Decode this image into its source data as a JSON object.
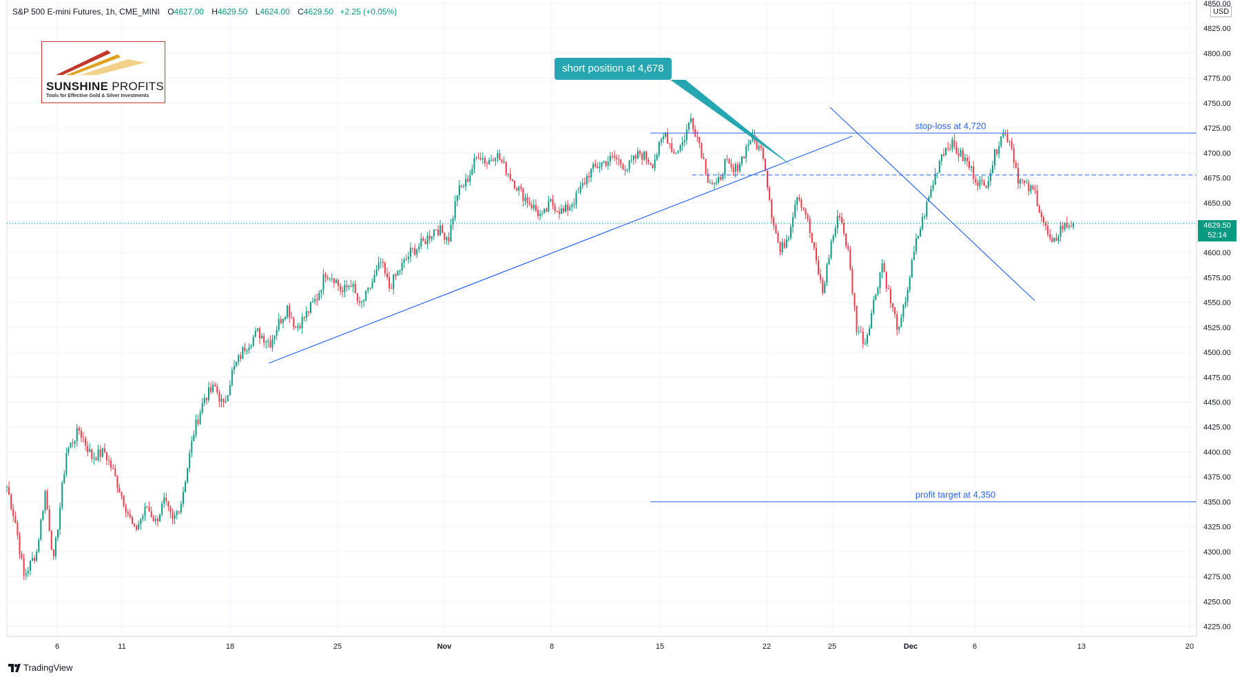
{
  "header": {
    "symbol": "S&P 500 E-mini Futures, 1h, CME_MINI",
    "open_label": "O",
    "open": "4627.00",
    "high_label": "H",
    "high": "4629.50",
    "low_label": "L",
    "low": "4624.00",
    "close_label": "C",
    "close": "4629.50",
    "change": "+2.25 (+0.05%)"
  },
  "logo": {
    "name_bold": "SUNSHINE",
    "name_light": "PROFITS",
    "tagline": "Tools for Effective Gold & Silver Investments"
  },
  "callout": {
    "text": "short position at 4,678"
  },
  "price_tag": {
    "price": "4629.50",
    "countdown": "52:14"
  },
  "currency": "USD",
  "footer": {
    "brand": "TradingView"
  },
  "colors": {
    "up": "#089981",
    "down": "#f23645",
    "trend": "#2962ff",
    "callout": "#26a6b0",
    "grid": "#f0f3fa"
  },
  "chart_data": {
    "type": "candlestick",
    "ylim": [
      4215,
      4850
    ],
    "y_ticks": [
      4225,
      4250,
      4275,
      4300,
      4325,
      4350,
      4375,
      4400,
      4425,
      4450,
      4475,
      4500,
      4525,
      4550,
      4575,
      4600,
      4625,
      4650,
      4675,
      4700,
      4725,
      4750,
      4775,
      4800,
      4825,
      4850
    ],
    "y_tick_labels": [
      "4225.00",
      "4250.00",
      "4275.00",
      "4300.00",
      "4325.00",
      "4350.00",
      "4375.00",
      "4400.00",
      "4425.00",
      "4450.00",
      "4475.00",
      "4500.00",
      "4525.00",
      "4550.00",
      "4575.00",
      "4600.00",
      "4625.00",
      "4650.00",
      "4675.00",
      "4700.00",
      "4725.00",
      "4750.00",
      "4775.00",
      "4800.00",
      "4825.00",
      "4850.00"
    ],
    "x_labels": [
      "6",
      "11",
      "18",
      "25",
      "Nov",
      "8",
      "15",
      "22",
      "25",
      "Dec",
      "6",
      "13",
      "20"
    ],
    "price_path": [
      [
        0,
        4365
      ],
      [
        4,
        4330
      ],
      [
        8,
        4275
      ],
      [
        14,
        4300
      ],
      [
        18,
        4360
      ],
      [
        22,
        4290
      ],
      [
        28,
        4400
      ],
      [
        34,
        4422
      ],
      [
        40,
        4395
      ],
      [
        46,
        4400
      ],
      [
        50,
        4380
      ],
      [
        56,
        4345
      ],
      [
        60,
        4320
      ],
      [
        66,
        4345
      ],
      [
        70,
        4330
      ],
      [
        74,
        4350
      ],
      [
        78,
        4330
      ],
      [
        82,
        4350
      ],
      [
        88,
        4420
      ],
      [
        93,
        4455
      ],
      [
        98,
        4465
      ],
      [
        102,
        4445
      ],
      [
        106,
        4480
      ],
      [
        112,
        4505
      ],
      [
        118,
        4520
      ],
      [
        124,
        4510
      ],
      [
        128,
        4530
      ],
      [
        132,
        4545
      ],
      [
        136,
        4525
      ],
      [
        140,
        4535
      ],
      [
        146,
        4555
      ],
      [
        150,
        4580
      ],
      [
        154,
        4575
      ],
      [
        158,
        4560
      ],
      [
        162,
        4570
      ],
      [
        166,
        4545
      ],
      [
        170,
        4560
      ],
      [
        176,
        4590
      ],
      [
        180,
        4565
      ],
      [
        184,
        4580
      ],
      [
        190,
        4600
      ],
      [
        196,
        4610
      ],
      [
        202,
        4625
      ],
      [
        208,
        4615
      ],
      [
        212,
        4660
      ],
      [
        216,
        4670
      ],
      [
        222,
        4700
      ],
      [
        226,
        4690
      ],
      [
        230,
        4700
      ],
      [
        236,
        4680
      ],
      [
        242,
        4660
      ],
      [
        248,
        4645
      ],
      [
        252,
        4635
      ],
      [
        256,
        4650
      ],
      [
        262,
        4640
      ],
      [
        268,
        4655
      ],
      [
        274,
        4680
      ],
      [
        280,
        4690
      ],
      [
        286,
        4695
      ],
      [
        292,
        4685
      ],
      [
        298,
        4700
      ],
      [
        304,
        4690
      ],
      [
        310,
        4720
      ],
      [
        314,
        4700
      ],
      [
        318,
        4710
      ],
      [
        322,
        4735
      ],
      [
        326,
        4710
      ],
      [
        330,
        4675
      ],
      [
        334,
        4665
      ],
      [
        338,
        4690
      ],
      [
        342,
        4680
      ],
      [
        346,
        4695
      ],
      [
        350,
        4715
      ],
      [
        356,
        4700
      ],
      [
        360,
        4640
      ],
      [
        364,
        4600
      ],
      [
        368,
        4620
      ],
      [
        372,
        4660
      ],
      [
        376,
        4640
      ],
      [
        380,
        4600
      ],
      [
        384,
        4560
      ],
      [
        388,
        4610
      ],
      [
        392,
        4640
      ],
      [
        396,
        4600
      ],
      [
        400,
        4525
      ],
      [
        404,
        4510
      ],
      [
        408,
        4550
      ],
      [
        412,
        4590
      ],
      [
        416,
        4550
      ],
      [
        420,
        4520
      ],
      [
        424,
        4565
      ],
      [
        428,
        4610
      ],
      [
        432,
        4640
      ],
      [
        436,
        4670
      ],
      [
        440,
        4700
      ],
      [
        444,
        4710
      ],
      [
        448,
        4700
      ],
      [
        452,
        4690
      ],
      [
        456,
        4675
      ],
      [
        460,
        4665
      ],
      [
        464,
        4690
      ],
      [
        468,
        4720
      ],
      [
        472,
        4715
      ],
      [
        476,
        4675
      ],
      [
        480,
        4665
      ],
      [
        484,
        4660
      ],
      [
        488,
        4630
      ],
      [
        492,
        4605
      ],
      [
        496,
        4625
      ],
      [
        500,
        4628
      ],
      [
        502,
        4629.5
      ]
    ],
    "x_max": 560,
    "annotations": [
      {
        "label": "stop-loss at 4,720",
        "price": 4720
      },
      {
        "label": "profit target at 4,350",
        "price": 4350
      }
    ],
    "short_entry": 4678,
    "current_price": 4629.5
  }
}
